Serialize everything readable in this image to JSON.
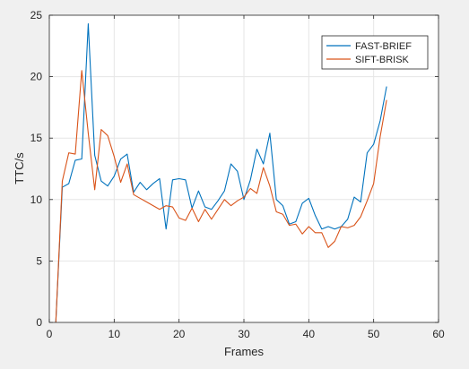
{
  "chart_data": {
    "type": "line",
    "xlabel": "Frames",
    "ylabel": "TTC/s",
    "xlim": [
      0,
      60
    ],
    "ylim": [
      0,
      25
    ],
    "xticks": [
      0,
      10,
      20,
      30,
      40,
      50,
      60
    ],
    "yticks": [
      0,
      5,
      10,
      15,
      20,
      25
    ],
    "grid": true,
    "legend_position": "top-right",
    "x": [
      1,
      2,
      3,
      4,
      5,
      6,
      7,
      8,
      9,
      10,
      11,
      12,
      13,
      14,
      15,
      16,
      17,
      18,
      19,
      20,
      21,
      22,
      23,
      24,
      25,
      26,
      27,
      28,
      29,
      30,
      31,
      32,
      33,
      34,
      35,
      36,
      37,
      38,
      39,
      40,
      41,
      42,
      43,
      44,
      45,
      46,
      47,
      48,
      49,
      50,
      51,
      52
    ],
    "series": [
      {
        "name": "FAST-BRIEF",
        "color": "#0072bd",
        "values": [
          0,
          11.0,
          11.3,
          13.2,
          13.3,
          24.3,
          13.6,
          11.5,
          11.1,
          11.9,
          13.3,
          13.7,
          10.6,
          11.4,
          10.8,
          11.3,
          11.7,
          7.6,
          11.6,
          11.7,
          11.6,
          9.3,
          10.7,
          9.4,
          9.2,
          9.9,
          10.7,
          12.9,
          12.3,
          10.0,
          11.6,
          14.1,
          12.9,
          15.4,
          10.0,
          9.5,
          8.0,
          8.2,
          9.7,
          10.1,
          8.7,
          7.6,
          7.8,
          7.6,
          7.8,
          8.4,
          10.2,
          9.8,
          13.8,
          14.5,
          16.4,
          19.2
        ]
      },
      {
        "name": "SIFT-BRISK",
        "color": "#d95319",
        "values": [
          0,
          11.5,
          13.8,
          13.7,
          20.5,
          15.4,
          10.8,
          15.7,
          15.2,
          13.5,
          11.4,
          12.9,
          10.4,
          10.1,
          9.8,
          9.5,
          9.2,
          9.5,
          9.4,
          8.5,
          8.3,
          9.3,
          8.2,
          9.2,
          8.4,
          9.2,
          10.0,
          9.5,
          9.9,
          10.2,
          10.9,
          10.5,
          12.6,
          11.1,
          9.0,
          8.8,
          7.9,
          8.0,
          7.2,
          7.8,
          7.3,
          7.3,
          6.1,
          6.6,
          7.8,
          7.7,
          7.9,
          8.6,
          9.9,
          11.3,
          15.1,
          18.1
        ]
      }
    ]
  }
}
